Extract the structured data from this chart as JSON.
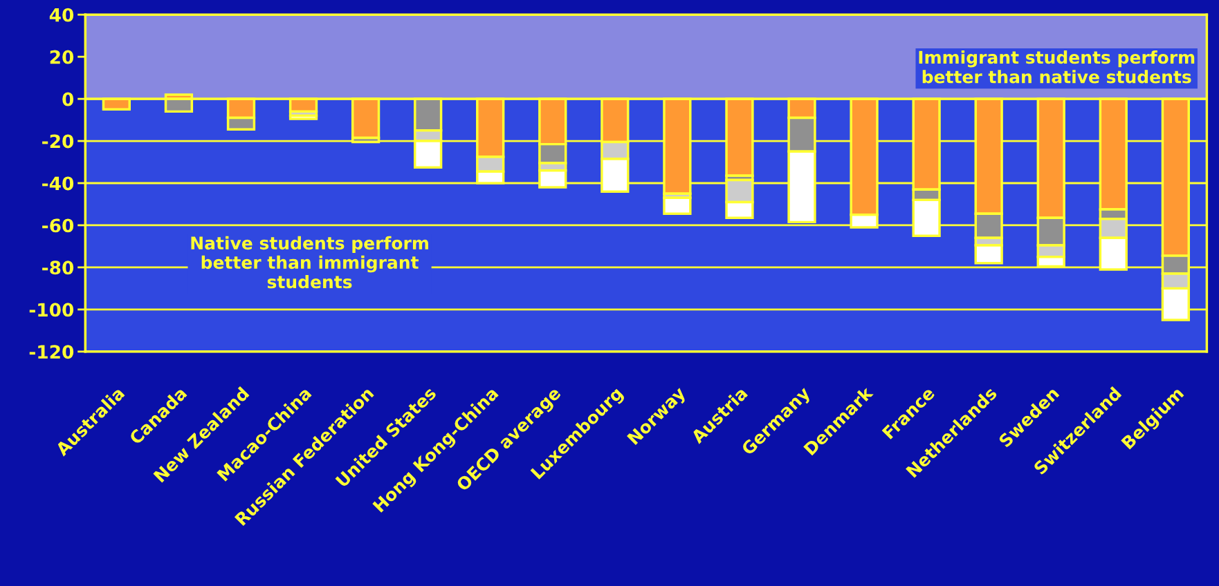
{
  "chart_data": {
    "type": "bar",
    "stacked": true,
    "legend": false,
    "grid": "y",
    "categories": [
      "Australia",
      "Canada",
      "New Zealand",
      "Macao-China",
      "Russian Federation",
      "United States",
      "Hong Kong-China",
      "OECD average",
      "Luxembourg",
      "Norway",
      "Austria",
      "Germany",
      "Denmark",
      "France",
      "Netherlands",
      "Sweden",
      "Switzerland",
      "Belgium"
    ],
    "series": [
      {
        "color": "#ff9933",
        "values": [
          -5,
          2,
          -9,
          -6,
          -18.5,
          null,
          -27.5,
          -21.5,
          -20.5,
          -45,
          -36.5,
          -9,
          -55,
          -43,
          -54.5,
          -56.5,
          -52.5,
          -74.5
        ]
      },
      {
        "color": "#909090",
        "values": [
          null,
          -6,
          -5.5,
          null,
          -2,
          -15,
          null,
          -9,
          null,
          null,
          -2,
          -16,
          null,
          -5,
          -11.5,
          -13,
          -4.5,
          -8.5
        ]
      },
      {
        "color": "#cccccc",
        "values": [
          null,
          null,
          null,
          -2,
          null,
          -5,
          -7,
          -3.5,
          -8,
          -2,
          -10.5,
          null,
          null,
          null,
          -3.5,
          -5.5,
          -9,
          -7
        ]
      },
      {
        "color": "#ffffff",
        "values": [
          null,
          null,
          null,
          -1.5,
          null,
          -12.5,
          -5.5,
          -8,
          -15.5,
          -7.5,
          -7.5,
          -33.5,
          -6,
          -17,
          -8.5,
          -4.5,
          -15,
          -15
        ]
      }
    ],
    "ylim": [
      -120,
      40
    ],
    "yticks": [
      -120,
      -100,
      -80,
      -60,
      -40,
      -20,
      0,
      20,
      40
    ],
    "bands": [
      {
        "axis": "y",
        "from": 0,
        "to": 40,
        "color": "#8888e0"
      }
    ],
    "ref_lines": [
      {
        "axis": "y",
        "value": 0,
        "color": "#ffff33"
      }
    ],
    "annotations": [
      "Immigrant students perform\nbetter than native students",
      "Native students perform\nbetter than immigrant\nstudents"
    ]
  }
}
